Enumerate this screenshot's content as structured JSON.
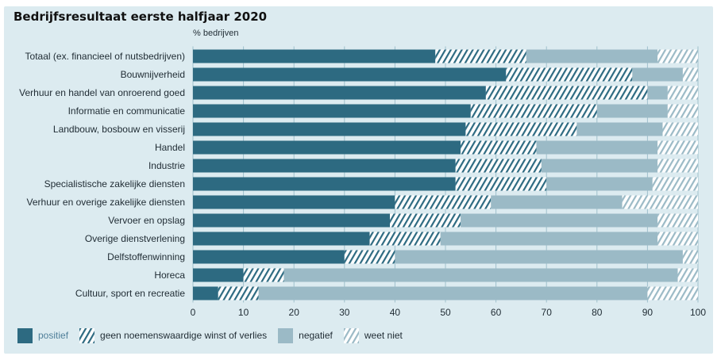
{
  "chart_data": {
    "type": "bar",
    "orientation": "horizontal",
    "stacked": true,
    "title": "Bedrijfsresultaat eerste halfjaar 2020",
    "ylabel": "% bedrijven",
    "xlim": [
      0,
      100
    ],
    "xticks": [
      0,
      10,
      20,
      30,
      40,
      50,
      60,
      70,
      80,
      90,
      100
    ],
    "grid": "vertical",
    "legend_position": "bottom-left",
    "categories": [
      "Totaal (ex. financieel of nutsbedrijven)",
      "Bouwnijverheid",
      "Verhuur en handel van onroerend goed",
      "Informatie en communicatie",
      "Landbouw, bosbouw en visserij",
      "Handel",
      "Industrie",
      "Specialistische zakelijke diensten",
      "Verhuur en overige zakelijke diensten",
      "Vervoer en opslag",
      "Overige dienstverlening",
      "Delfstoffenwinning",
      "Horeca",
      "Cultuur, sport en recreatie"
    ],
    "series": [
      {
        "name": "positief",
        "color": "#2d6a81",
        "pattern": "solid",
        "values": [
          48,
          62,
          58,
          55,
          54,
          53,
          52,
          52,
          40,
          39,
          35,
          30,
          10,
          5
        ]
      },
      {
        "name": "geen noemenswaardige winst of verlies",
        "color": "#2d6a81",
        "pattern": "hatched",
        "values": [
          18,
          25,
          32,
          25,
          22,
          15,
          17,
          18,
          19,
          14,
          14,
          10,
          8,
          8
        ]
      },
      {
        "name": "negatief",
        "color": "#9bbac6",
        "pattern": "solid",
        "values": [
          26,
          10,
          4,
          14,
          17,
          24,
          23,
          21,
          26,
          39,
          43,
          57,
          78,
          77
        ]
      },
      {
        "name": "weet niet",
        "color": "#9bbac6",
        "pattern": "hatched",
        "values": [
          8,
          3,
          6,
          6,
          7,
          8,
          8,
          9,
          15,
          8,
          8,
          3,
          4,
          10
        ]
      }
    ]
  },
  "colors": {
    "panel_background": "#dcebf0",
    "text": "#1f2b33",
    "grid": "#9fc0cc",
    "dark": "#2d6a81",
    "light": "#9bbac6"
  }
}
